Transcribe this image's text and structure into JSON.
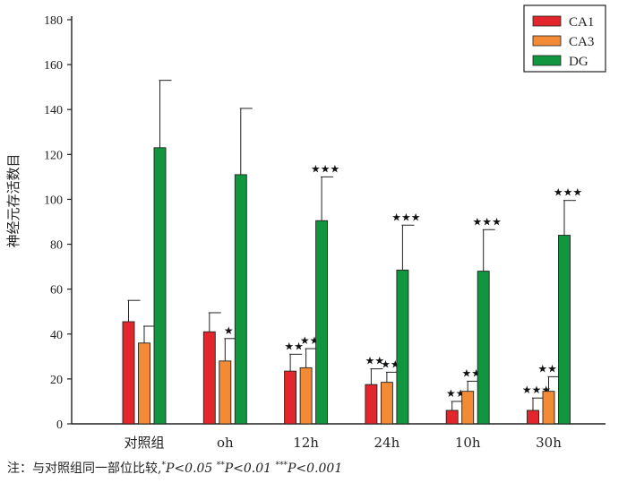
{
  "chart_data": {
    "type": "bar",
    "ylabel": "神经元存活数目",
    "ylim": [
      0,
      180
    ],
    "yticks": [
      0,
      20,
      40,
      60,
      80,
      100,
      120,
      140,
      160,
      180
    ],
    "categories": [
      "对照组",
      "oh",
      "12h",
      "24h",
      "10h",
      "30h"
    ],
    "legend_position": "top-right",
    "grid": false,
    "series": [
      {
        "name": "CA1",
        "color": "#e3262b",
        "values": [
          45.5,
          41,
          23.5,
          17.5,
          6,
          6
        ],
        "errors": [
          9.5,
          8.5,
          7.5,
          7,
          4,
          5.5
        ],
        "stars": [
          "",
          "",
          "★★",
          "★★",
          "★★",
          "★★★"
        ]
      },
      {
        "name": "CA3",
        "color": "#f28a36",
        "values": [
          36,
          28,
          25,
          18.5,
          14.5,
          14.5
        ],
        "errors": [
          7.5,
          10,
          8.5,
          4.5,
          4.5,
          6.5
        ],
        "stars": [
          "",
          "★",
          "★★",
          "★★",
          "★★",
          "★★★"
        ]
      },
      {
        "name": "DG",
        "color": "#12953f",
        "values": [
          123,
          111,
          90.5,
          68.5,
          68,
          84
        ],
        "errors": [
          30,
          29.5,
          19.5,
          20,
          18.5,
          15.5
        ],
        "stars": [
          "",
          "",
          "★★★",
          "★★★",
          "★★★",
          "★★★"
        ]
      }
    ]
  },
  "footnote": {
    "prefix": "注：与对照组同一部位比较,",
    "s1": "*",
    "t1": "P<0.05",
    "s2": "**",
    "t2": "P<0.01",
    "s3": "***",
    "t3": "P<0.001"
  }
}
